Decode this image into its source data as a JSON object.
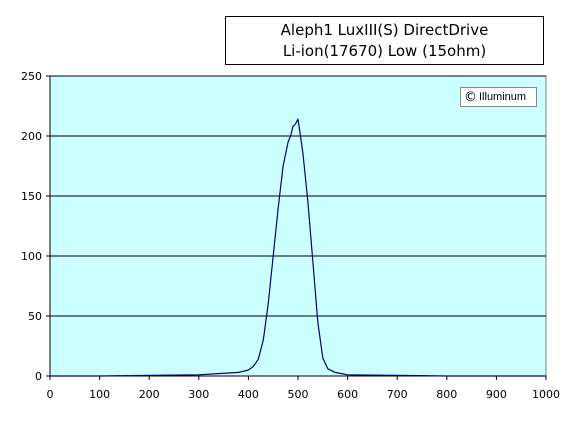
{
  "chart_data": {
    "type": "line",
    "title_lines": [
      "Aleph1 LuxIII(S) DirectDrive",
      "Li-ion(17670) Low (15ohm)"
    ],
    "watermark": "Illuminum",
    "copyright_symbol": "©",
    "xlim": [
      0,
      1000
    ],
    "ylim": [
      0,
      250
    ],
    "x_ticks": [
      "0",
      "100",
      "200",
      "300",
      "400",
      "500",
      "600",
      "700",
      "800",
      "900",
      "1000"
    ],
    "y_ticks": [
      "0",
      "50",
      "100",
      "150",
      "200",
      "250"
    ],
    "grid": "horizontal",
    "legend": "none",
    "colors": {
      "plot_bg": "#ccffff",
      "line": "#000080",
      "grid": "#000000"
    },
    "series": [
      {
        "x": [
          0,
          100,
          200,
          300,
          380,
          400,
          410,
          420,
          430,
          440,
          450,
          460,
          470,
          480,
          485,
          490,
          495,
          500,
          505,
          510,
          520,
          530,
          540,
          550,
          560,
          575,
          600,
          700,
          800,
          1000
        ],
        "y": [
          0,
          0,
          0.5,
          1,
          3,
          5,
          8,
          14,
          30,
          60,
          100,
          140,
          175,
          195,
          200,
          208,
          210,
          214,
          200,
          185,
          145,
          95,
          45,
          15,
          6,
          3,
          1,
          0.5,
          0,
          0
        ]
      }
    ]
  }
}
